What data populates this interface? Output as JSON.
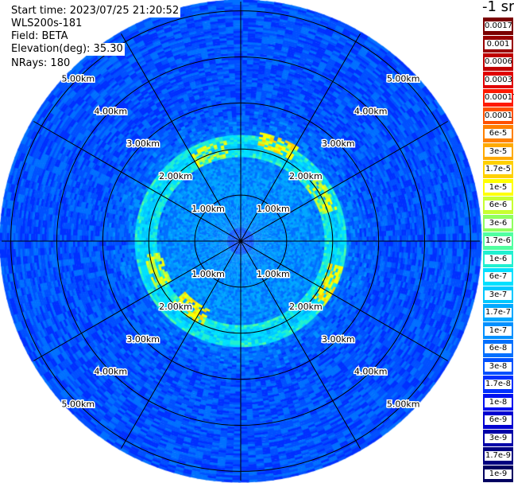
{
  "info": {
    "start_time": "Start time: 2023/07/25 21:20:52",
    "instrument": "WLS200s-181",
    "field": "Field: BETA",
    "elevation": "Elevation(deg): 35.30",
    "nrays": "NRays: 180"
  },
  "units": "-1 sr",
  "colorbar": [
    {
      "label": "0.0017",
      "color": "#7a0000"
    },
    {
      "label": "0.001",
      "color": "#990000"
    },
    {
      "label": "0.0006",
      "color": "#c00000"
    },
    {
      "label": "0.0003",
      "color": "#e00000"
    },
    {
      "label": "0.00017",
      "color": "#ff1a00"
    },
    {
      "label": "0.0001",
      "color": "#ff5000"
    },
    {
      "label": "6e-5",
      "color": "#ff8000"
    },
    {
      "label": "3e-5",
      "color": "#ffaa00"
    },
    {
      "label": "1.7e-5",
      "color": "#ffd000"
    },
    {
      "label": "1e-5",
      "color": "#ffff00"
    },
    {
      "label": "6e-6",
      "color": "#c8ff30"
    },
    {
      "label": "3e-6",
      "color": "#90ff60"
    },
    {
      "label": "1.7e-6",
      "color": "#50ffa0"
    },
    {
      "label": "1e-6",
      "color": "#20f0d0"
    },
    {
      "label": "6e-7",
      "color": "#00e0ff"
    },
    {
      "label": "3e-7",
      "color": "#00c8ff"
    },
    {
      "label": "1.7e-7",
      "color": "#00a8ff"
    },
    {
      "label": "1e-7",
      "color": "#0090ff"
    },
    {
      "label": "6e-8",
      "color": "#0070ff"
    },
    {
      "label": "3e-8",
      "color": "#0050ff"
    },
    {
      "label": "1.7e-8",
      "color": "#0030ff"
    },
    {
      "label": "1e-8",
      "color": "#0010f0"
    },
    {
      "label": "6e-9",
      "color": "#0000d0"
    },
    {
      "label": "3e-9",
      "color": "#0000a8"
    },
    {
      "label": "1.7e-9",
      "color": "#000080"
    },
    {
      "label": "1e-9",
      "color": "#000060"
    }
  ],
  "chart_data": {
    "type": "heatmap",
    "projection": "polar-ppi",
    "field": "BETA",
    "units": "-1 sr",
    "n_rays": 180,
    "range_rings_km": [
      1,
      2,
      3,
      4,
      5
    ],
    "range_labels": [
      "1.00km",
      "2.00km",
      "3.00km",
      "4.00km",
      "5.00km"
    ],
    "max_range_km": 5.2,
    "azimuth_spokes_deg": [
      0,
      30,
      60,
      90,
      120,
      150,
      180,
      210,
      240,
      270,
      300,
      330
    ],
    "colorscale": "log",
    "value_range": [
      1e-09,
      0.0017
    ],
    "background_level_far": "3e-8",
    "inner_level_near": "1e-7",
    "ring_band_km": [
      1.8,
      2.3
    ],
    "ring_band_level": "1e-6",
    "feature_arcs": [
      {
        "az_center_deg": 20,
        "range_km": 2.2,
        "level": "1e-5"
      },
      {
        "az_center_deg": 340,
        "range_km": 2.0,
        "level": "6e-6"
      },
      {
        "az_center_deg": 60,
        "range_km": 2.0,
        "level": "6e-6"
      },
      {
        "az_center_deg": 115,
        "range_km": 2.1,
        "level": "1e-5"
      },
      {
        "az_center_deg": 250,
        "range_km": 1.9,
        "level": "6e-6"
      },
      {
        "az_center_deg": 215,
        "range_km": 1.8,
        "level": "1e-5"
      }
    ]
  }
}
